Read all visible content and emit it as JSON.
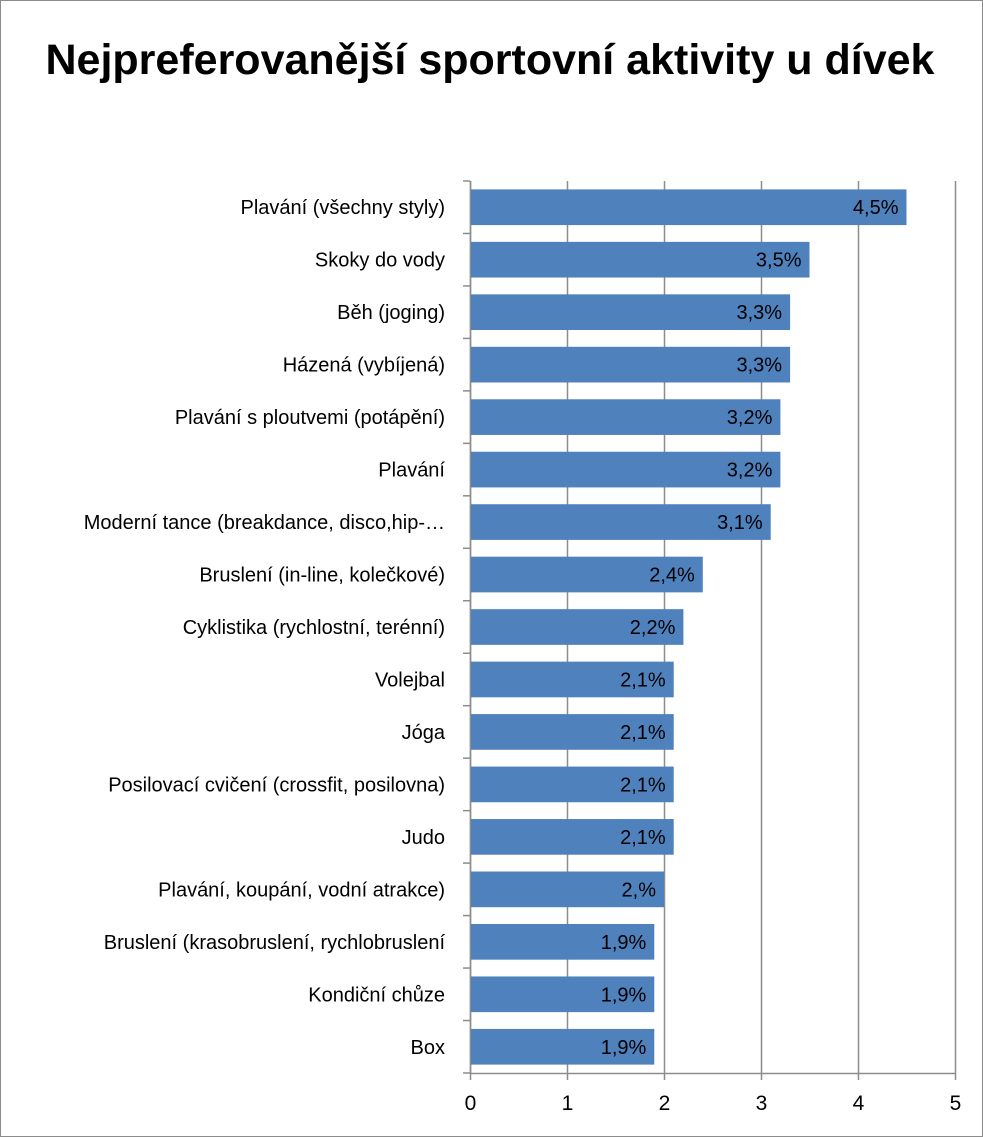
{
  "chart_data": {
    "type": "bar",
    "orientation": "horizontal",
    "title": "Nejpreferovanější sportovní aktivity u dívek",
    "categories": [
      "Plavání (všechny styly)",
      "Skoky do vody",
      "Běh (joging)",
      "Házená (vybíjená)",
      "Plavání s ploutvemi (potápění)",
      "Plavání",
      "Moderní tance (breakdance, disco,hip-…",
      "Bruslení (in-line, kolečkové)",
      "Cyklistika (rychlostní, terénní)",
      "Volejbal",
      "Jóga",
      "Posilovací cvičení (crossfit, posilovna)",
      "Judo",
      "Plavání, koupání, vodní atrakce)",
      "Bruslení (krasobruslení, rychlobruslení",
      "Kondiční chůze",
      "Box"
    ],
    "values": [
      4.5,
      3.5,
      3.3,
      3.3,
      3.2,
      3.2,
      3.1,
      2.4,
      2.2,
      2.1,
      2.1,
      2.1,
      2.1,
      2.0,
      1.9,
      1.9,
      1.9
    ],
    "value_labels": [
      "4,5%",
      "3,5%",
      "3,3%",
      "3,3%",
      "3,2%",
      "3,2%",
      "3,1%",
      "2,4%",
      "2,2%",
      "2,1%",
      "2,1%",
      "2,1%",
      "2,1%",
      "2,%",
      "1,9%",
      "1,9%",
      "1,9%"
    ],
    "xlim": [
      0,
      5
    ],
    "xticks": [
      "0",
      "1",
      "2",
      "3",
      "4",
      "5"
    ],
    "grid": true,
    "legend": "none",
    "bar_color": "#4f81bd",
    "grid_color": "#8c8c8c"
  }
}
